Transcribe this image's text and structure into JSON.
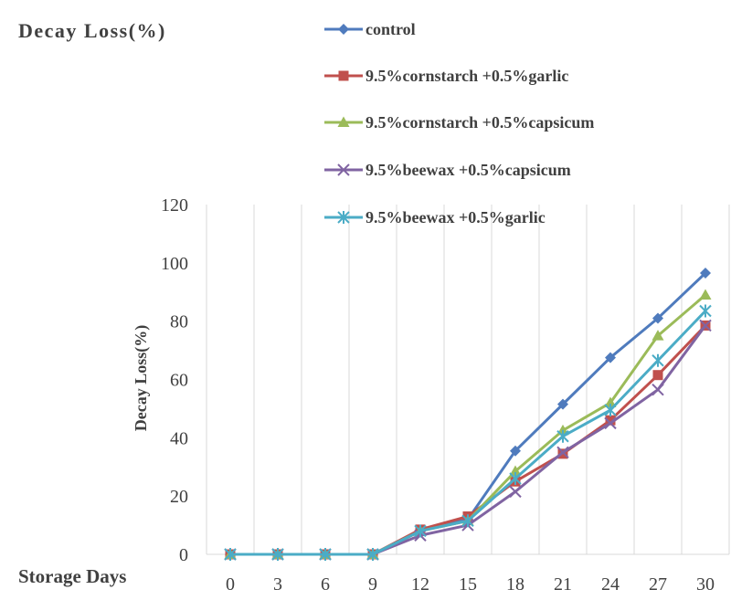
{
  "chart_data": {
    "type": "line",
    "title": "Decay Loss(%)",
    "xlabel": "Storage Days",
    "ylabel": "Decay Loss(%)",
    "categories": [
      "0",
      "3",
      "6",
      "9",
      "12",
      "15",
      "18",
      "21",
      "24",
      "27",
      "30"
    ],
    "ylim": [
      0,
      120
    ],
    "yticks": [
      "0",
      "20",
      "40",
      "60",
      "80",
      "100",
      "120"
    ],
    "grid": "vertical",
    "legend_position": "top-right",
    "series": [
      {
        "name": "control",
        "color": "#4F7BBD",
        "marker": "diamond",
        "values": [
          0,
          0,
          0,
          0,
          8,
          12,
          35.5,
          51.5,
          67.5,
          81,
          96.5
        ]
      },
      {
        "name": "9.5%cornstarch +0.5%garlic",
        "color": "#C0504D",
        "marker": "square",
        "values": [
          0,
          0,
          0,
          0,
          8.5,
          13,
          25,
          34.5,
          46,
          61.5,
          78.5
        ]
      },
      {
        "name": "9.5%cornstarch +0.5%capsicum",
        "color": "#9BBB59",
        "marker": "triangle",
        "values": [
          0,
          0,
          0,
          0,
          8,
          11.5,
          28.5,
          42.5,
          52,
          75,
          89
        ]
      },
      {
        "name": "9.5%beewax +0.5%capsicum",
        "color": "#8064A2",
        "marker": "x",
        "values": [
          0,
          0,
          0,
          0,
          6.5,
          10,
          21.5,
          35,
          45,
          56.5,
          78.5
        ]
      },
      {
        "name": "9.5%beewax +0.5%garlic",
        "color": "#4BACC6",
        "marker": "asterisk",
        "values": [
          0,
          0,
          0,
          0,
          8,
          11.5,
          26,
          40.5,
          49.5,
          66.5,
          83.5
        ]
      }
    ]
  }
}
